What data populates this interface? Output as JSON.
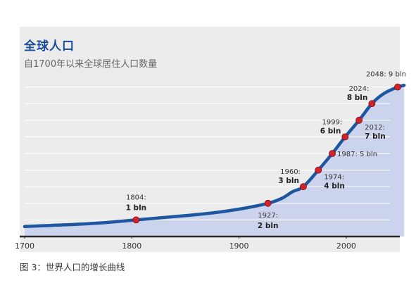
{
  "chart_data": {
    "type": "area",
    "title": "全球人口",
    "subtitle": "自1700年以来全球居住人口数量",
    "caption": "图 3：世界人口的增长曲线",
    "xlabel": "",
    "ylabel": "",
    "xlim": [
      1700,
      2050
    ],
    "ylim": [
      0,
      10
    ],
    "x_ticks": [
      "1700",
      "1800",
      "1900",
      "2000"
    ],
    "grid": true,
    "series": [
      {
        "x": [
          1700,
          1725,
          1750,
          1775,
          1804,
          1825,
          1850,
          1875,
          1900,
          1927,
          1940,
          1950,
          1960,
          1974,
          1987,
          1999,
          2012,
          2024,
          2035,
          2048,
          2054
        ],
        "values": [
          0.6,
          0.67,
          0.74,
          0.84,
          1.0,
          1.12,
          1.26,
          1.42,
          1.65,
          2.0,
          2.3,
          2.7,
          3.0,
          4.0,
          5.0,
          6.0,
          7.0,
          8.0,
          8.6,
          9.0,
          9.1
        ]
      }
    ],
    "line_color": "#1e56a0",
    "fill_color": "#ccd3ec",
    "marker_color": "#d2232a",
    "milestones": [
      {
        "x": 1804,
        "y": 1,
        "year": "1804:",
        "value": "1 bln",
        "placement": "above"
      },
      {
        "x": 1927,
        "y": 2,
        "year": "1927:",
        "value": "2 bln",
        "placement": "below"
      },
      {
        "x": 1960,
        "y": 3,
        "year": "1960:",
        "value": "3 bln",
        "placement": "left"
      },
      {
        "x": 1974,
        "y": 4,
        "year": "1974:",
        "value": "4 bln",
        "placement": "right"
      },
      {
        "x": 1987,
        "y": 5,
        "year": "",
        "value": "1987: 5 bln",
        "placement": "right-inline"
      },
      {
        "x": 1999,
        "y": 6,
        "year": "1999:",
        "value": "6 bln",
        "placement": "left"
      },
      {
        "x": 2012,
        "y": 7,
        "year": "2012:",
        "value": "7 bln",
        "placement": "right"
      },
      {
        "x": 2024,
        "y": 8,
        "year": "2024:",
        "value": "8 bln",
        "placement": "left"
      },
      {
        "x": 2048,
        "y": 9,
        "year": "",
        "value": "2048: 9 bln",
        "placement": "above-inline"
      }
    ]
  }
}
